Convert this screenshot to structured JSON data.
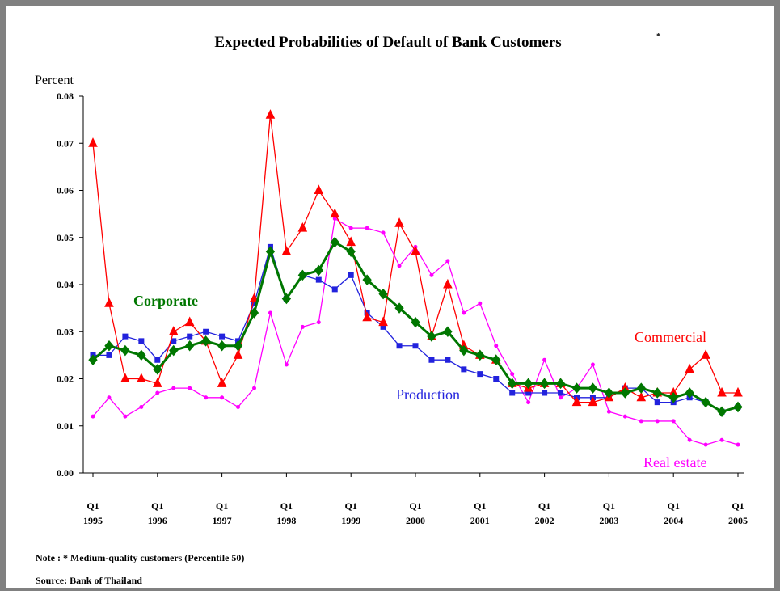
{
  "chart_data": {
    "type": "line",
    "title": "Expected Probabilities of Default of Bank Customers",
    "title_mark": "*",
    "y_label": "Percent",
    "note": "Note : * Medium-quality customers (Percentile 50)",
    "source": "Source: Bank of Thailand",
    "categories": [
      "Q1 1995",
      null,
      null,
      null,
      "Q1 1996",
      null,
      null,
      null,
      "Q1 1997",
      null,
      null,
      null,
      "Q1 1998",
      null,
      null,
      null,
      "Q1 1999",
      null,
      null,
      null,
      "Q1 2000",
      null,
      null,
      null,
      "Q1 2001",
      null,
      null,
      null,
      "Q1 2002",
      null,
      null,
      null,
      "Q1 2003",
      null,
      null,
      null,
      "Q1 2004",
      null,
      null,
      null,
      "Q1 2005"
    ],
    "ylim": [
      0,
      0.08
    ],
    "yticks": [
      {
        "value": 0,
        "label": "0.00"
      },
      {
        "value": 0.01,
        "label": "0.01"
      },
      {
        "value": 0.02,
        "label": "0.02"
      },
      {
        "value": 0.03,
        "label": "0.03"
      },
      {
        "value": 0.04,
        "label": "0.04"
      },
      {
        "value": 0.05,
        "label": "0.05"
      },
      {
        "value": 0.06,
        "label": "0.06"
      },
      {
        "value": 0.07,
        "label": "0.07"
      },
      {
        "value": 0.08,
        "label": "0.08"
      }
    ],
    "series": [
      {
        "name": "Real estate",
        "color": "#ff00ff",
        "marker": "dot",
        "values": [
          0.012,
          0.016,
          0.012,
          0.014,
          0.017,
          0.018,
          0.018,
          0.016,
          0.016,
          0.014,
          0.018,
          0.034,
          0.023,
          0.031,
          0.032,
          0.054,
          0.052,
          0.052,
          0.051,
          0.044,
          0.048,
          0.042,
          0.045,
          0.034,
          0.036,
          0.027,
          0.021,
          0.015,
          0.024,
          0.016,
          0.018,
          0.023,
          0.013,
          0.012,
          0.011,
          0.011,
          0.011,
          0.007,
          0.006,
          0.007,
          0.006
        ]
      },
      {
        "name": "Production",
        "color": "#2222dd",
        "marker": "square",
        "values": [
          0.025,
          0.025,
          0.029,
          0.028,
          0.024,
          0.028,
          0.029,
          0.03,
          0.029,
          0.028,
          0.036,
          0.048,
          0.037,
          0.042,
          0.041,
          0.039,
          0.042,
          0.034,
          0.031,
          0.027,
          0.027,
          0.024,
          0.024,
          0.022,
          0.021,
          0.02,
          0.017,
          0.017,
          0.017,
          0.017,
          0.016,
          0.016,
          0.016,
          0.018,
          0.018,
          0.015,
          0.015,
          0.016,
          0.015,
          0.013,
          0.014
        ]
      },
      {
        "name": "Commercial",
        "color": "#ff0000",
        "marker": "triangle",
        "values": [
          0.07,
          0.036,
          0.02,
          0.02,
          0.019,
          0.03,
          0.032,
          0.028,
          0.019,
          0.025,
          0.037,
          0.076,
          0.047,
          0.052,
          0.06,
          0.055,
          0.049,
          0.033,
          0.032,
          0.053,
          0.047,
          0.029,
          0.04,
          0.027,
          0.025,
          0.024,
          0.019,
          0.018,
          0.019,
          0.019,
          0.015,
          0.015,
          0.016,
          0.018,
          0.016,
          0.017,
          0.017,
          0.022,
          0.025,
          0.017,
          0.017
        ]
      },
      {
        "name": "Corporate",
        "color": "#007700",
        "marker": "diamond",
        "values": [
          0.024,
          0.027,
          0.026,
          0.025,
          0.022,
          0.026,
          0.027,
          0.028,
          0.027,
          0.027,
          0.034,
          0.047,
          0.037,
          0.042,
          0.043,
          0.049,
          0.047,
          0.041,
          0.038,
          0.035,
          0.032,
          0.029,
          0.03,
          0.026,
          0.025,
          0.024,
          0.019,
          0.019,
          0.019,
          0.019,
          0.018,
          0.018,
          0.017,
          0.017,
          0.018,
          0.017,
          0.016,
          0.017,
          0.015,
          0.013,
          0.014
        ]
      }
    ]
  }
}
